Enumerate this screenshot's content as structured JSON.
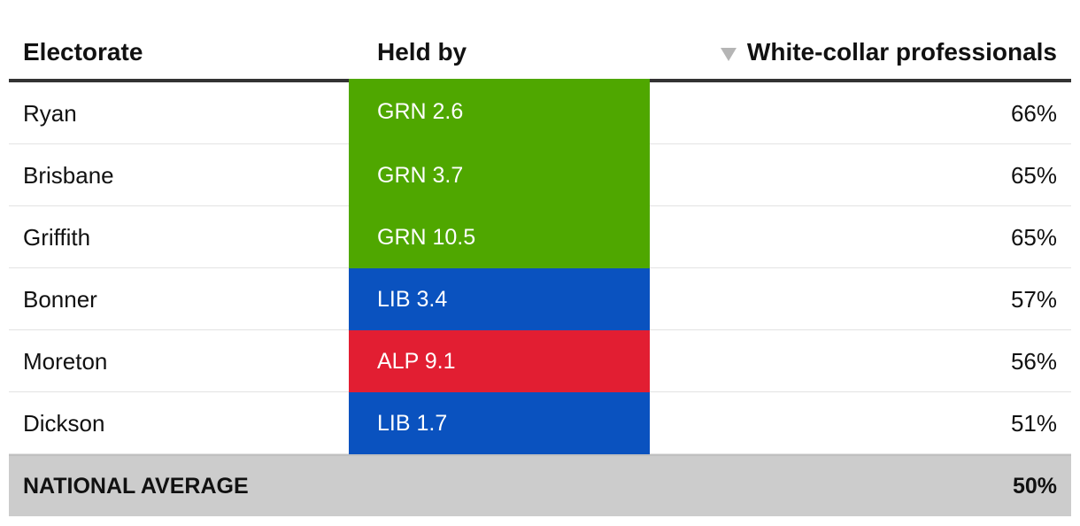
{
  "chart_data": {
    "type": "table",
    "columns": {
      "electorate": "Electorate",
      "held_by": "Held by",
      "value": "White-collar professionals"
    },
    "sort": {
      "column": "value",
      "direction": "descending",
      "icon": "sort-down-icon"
    },
    "party_colors": {
      "GRN": "#4fa700",
      "LIB": "#0a52bf",
      "ALP": "#e21e32"
    },
    "rows": [
      {
        "electorate": "Ryan",
        "party": "GRN",
        "held_by": "GRN 2.6",
        "value": "66%"
      },
      {
        "electorate": "Brisbane",
        "party": "GRN",
        "held_by": "GRN 3.7",
        "value": "65%"
      },
      {
        "electorate": "Griffith",
        "party": "GRN",
        "held_by": "GRN 10.5",
        "value": "65%"
      },
      {
        "electorate": "Bonner",
        "party": "LIB",
        "held_by": "LIB 3.4",
        "value": "57%"
      },
      {
        "electorate": "Moreton",
        "party": "ALP",
        "held_by": "ALP 9.1",
        "value": "56%"
      },
      {
        "electorate": "Dickson",
        "party": "LIB",
        "held_by": "LIB 1.7",
        "value": "51%"
      }
    ],
    "footer": {
      "label": "NATIONAL AVERAGE",
      "value": "50%"
    }
  }
}
